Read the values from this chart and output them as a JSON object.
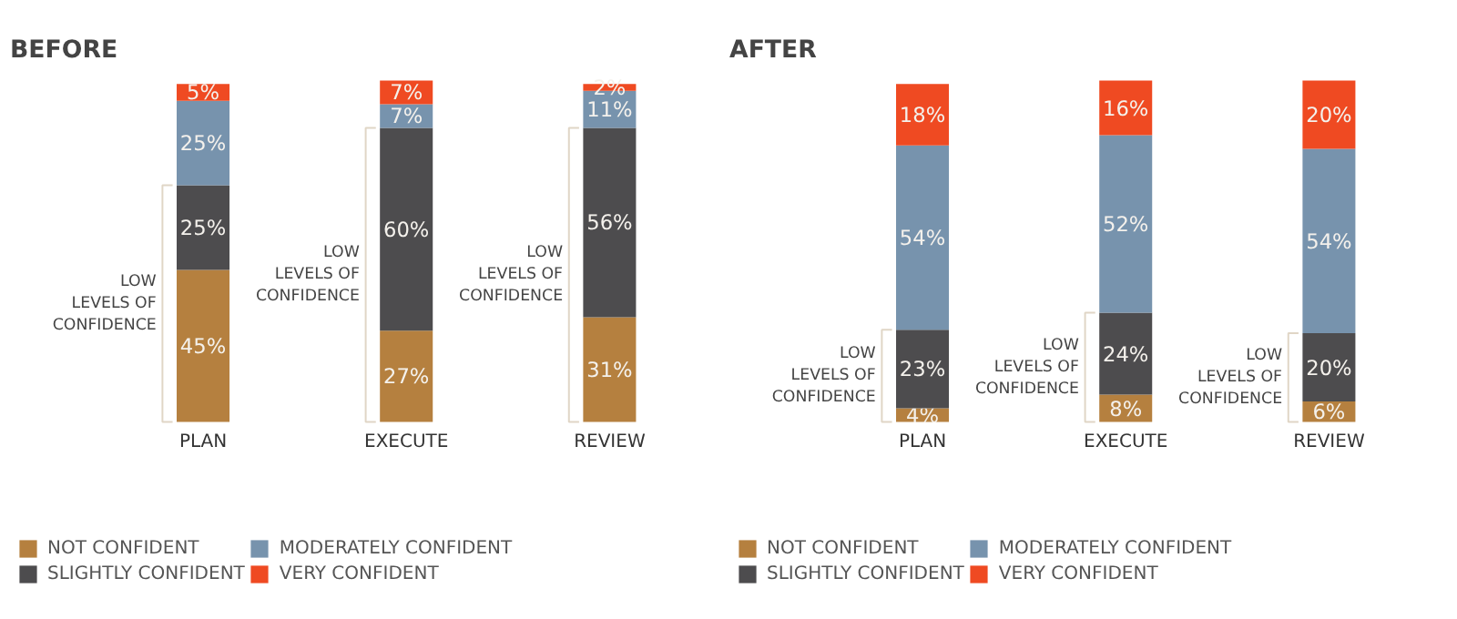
{
  "chart_data": [
    {
      "type": "bar",
      "title": "BEFORE",
      "stacked": true,
      "legend": "bottom",
      "categories": [
        "PLAN",
        "EXECUTE",
        "REVIEW"
      ],
      "series": [
        {
          "name": "NOT CONFIDENT",
          "color": "#b5803f",
          "values": [
            45,
            27,
            31
          ],
          "value_labels": [
            "45%",
            "27%",
            "31%"
          ]
        },
        {
          "name": "SLIGHTLY CONFIDENT",
          "color": "#4d4c4e",
          "values": [
            25,
            60,
            56
          ],
          "value_labels": [
            "25%",
            "60%",
            "56%"
          ]
        },
        {
          "name": "MODERATELY CONFIDENT",
          "color": "#7793ad",
          "values": [
            25,
            7,
            11
          ],
          "value_labels": [
            "25%",
            "7%",
            "11%"
          ]
        },
        {
          "name": "VERY CONFIDENT",
          "color": "#ef4a22",
          "values": [
            5,
            7,
            2
          ],
          "value_labels": [
            "5%",
            "7%",
            "2%"
          ]
        }
      ],
      "annotations": [
        "LOW\nLEVELS OF\nCONFIDENCE",
        "LOW\nLEVELS OF\nCONFIDENCE",
        "LOW\nLEVELS OF\nCONFIDENCE"
      ]
    },
    {
      "type": "bar",
      "title": "AFTER",
      "stacked": true,
      "legend": "bottom",
      "categories": [
        "PLAN",
        "EXECUTE",
        "REVIEW"
      ],
      "series": [
        {
          "name": "NOT CONFIDENT",
          "color": "#b5803f",
          "values": [
            4,
            8,
            6
          ],
          "value_labels": [
            "4%",
            "8%",
            "6%"
          ]
        },
        {
          "name": "SLIGHTLY CONFIDENT",
          "color": "#4d4c4e",
          "values": [
            23,
            24,
            20
          ],
          "value_labels": [
            "23%",
            "24%",
            "20%"
          ]
        },
        {
          "name": "MODERATELY CONFIDENT",
          "color": "#7793ad",
          "values": [
            54,
            52,
            54
          ],
          "value_labels": [
            "54%",
            "52%",
            "54%"
          ]
        },
        {
          "name": "VERY CONFIDENT",
          "color": "#ef4a22",
          "values": [
            18,
            16,
            20
          ],
          "value_labels": [
            "18%",
            "16%",
            "20%"
          ]
        }
      ],
      "annotations": [
        "LOW\nLEVELS OF\nCONFIDENCE",
        "LOW\nLEVELS OF\nCONFIDENCE",
        "LOW\nLEVELS OF\nCONFIDENCE"
      ]
    }
  ]
}
